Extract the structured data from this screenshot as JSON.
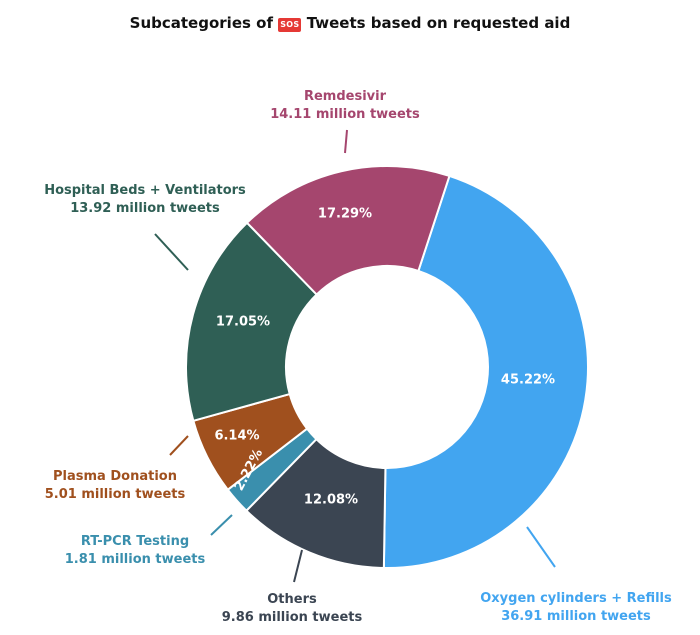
{
  "title": {
    "prefix": "Subcategories of",
    "emoji": "SOS",
    "suffix": "Tweets based on requested aid"
  },
  "chart_data": {
    "type": "pie",
    "donut": true,
    "categories": [
      "Oxygen cylinders + Refills",
      "Others",
      "RT-PCR Testing",
      "Plasma Donation",
      "Hospital Beds + Ventilators",
      "Remdesivir"
    ],
    "values": [
      45.22,
      12.08,
      2.22,
      6.14,
      17.05,
      17.29
    ],
    "percent_labels": [
      "45.22%",
      "12.08%",
      "2.22%",
      "6.14%",
      "17.05%",
      "17.29%"
    ],
    "tweet_labels": [
      "36.91 million tweets",
      "9.86 million tweets",
      "1.81 million tweets",
      "5.01 million tweets",
      "13.92 million tweets",
      "14.11 million tweets"
    ],
    "colors": [
      "#42a5f0",
      "#3b4552",
      "#3a8fad",
      "#a0501e",
      "#2f5f55",
      "#a5466e"
    ],
    "label_colors": [
      "#42a5f0",
      "#3b4552",
      "#3a8fad",
      "#a0501e",
      "#2f5f55",
      "#a5466e"
    ]
  }
}
